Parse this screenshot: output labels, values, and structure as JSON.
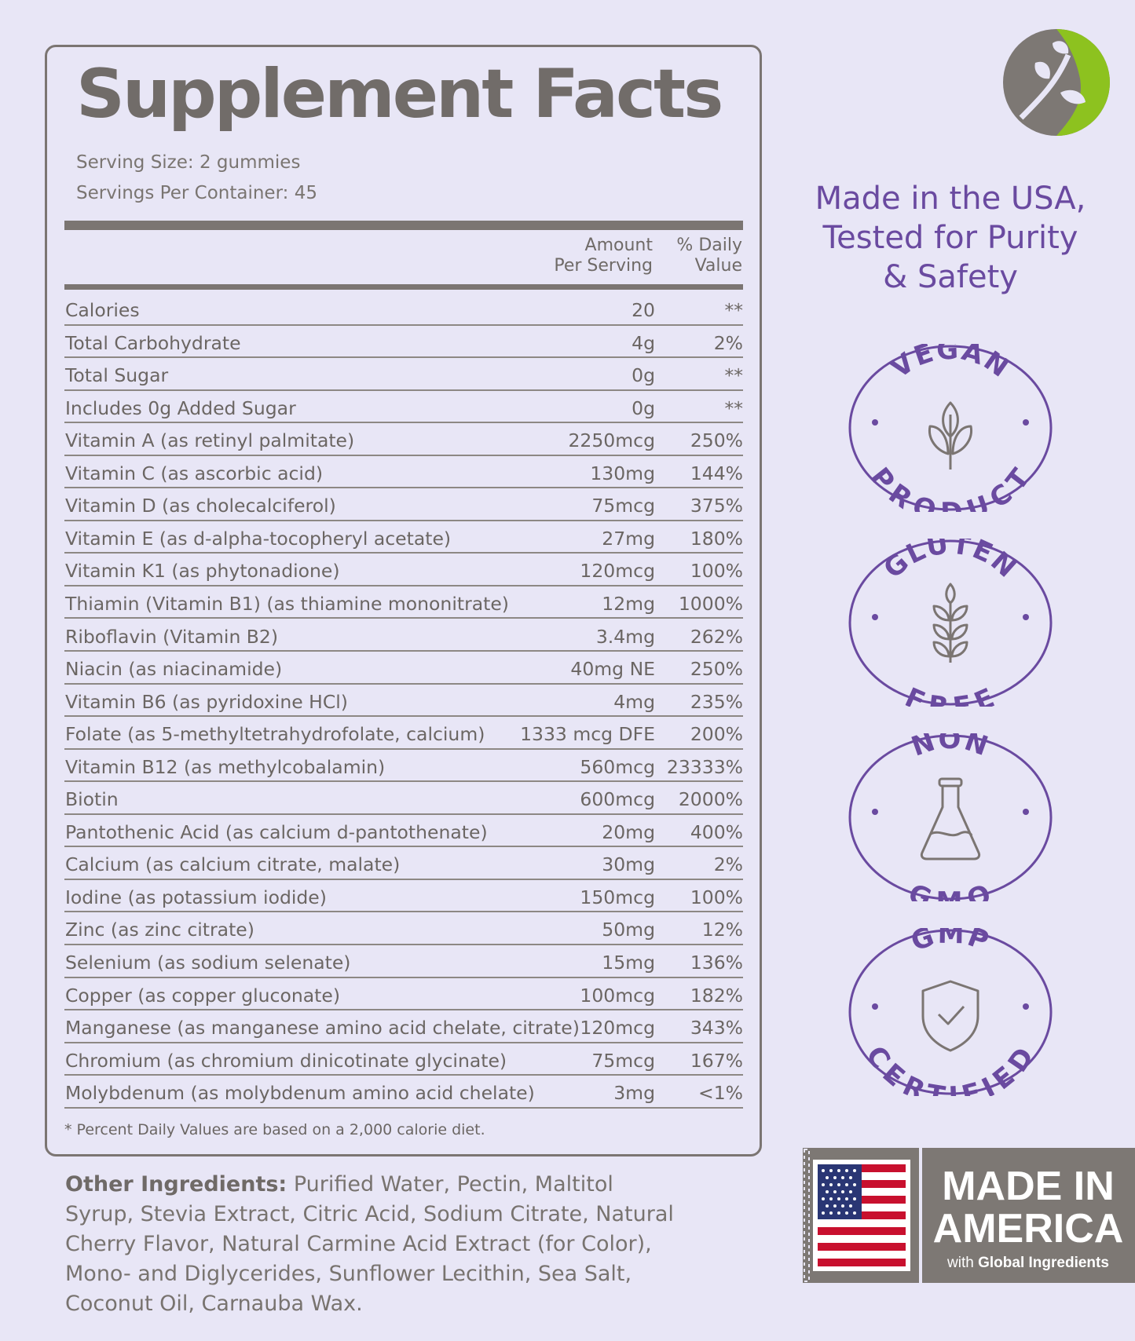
{
  "title": "Supplement Facts",
  "serving_size": "Serving Size: 2 gummies",
  "servings_per_container": "Servings Per Container: 45",
  "header": {
    "amount_line1": "Amount",
    "amount_line2": "Per Serving",
    "dv_line1": "% Daily",
    "dv_line2": "Value"
  },
  "rows": [
    {
      "name": "Calories",
      "amount": "20",
      "dv": "**"
    },
    {
      "name": "Total Carbohydrate",
      "amount": "4g",
      "dv": "2%"
    },
    {
      "name": "Total Sugar",
      "amount": "0g",
      "dv": "**"
    },
    {
      "name": "Includes 0g Added Sugar",
      "amount": "0g",
      "dv": "**"
    },
    {
      "name": "Vitamin A (as retinyl palmitate)",
      "amount": "2250mcg",
      "dv": "250%"
    },
    {
      "name": "Vitamin C (as ascorbic acid)",
      "amount": "130mg",
      "dv": "144%"
    },
    {
      "name": "Vitamin D (as cholecalciferol)",
      "amount": "75mcg",
      "dv": "375%"
    },
    {
      "name": "Vitamin E (as d-alpha-tocopheryl acetate)",
      "amount": "27mg",
      "dv": "180%"
    },
    {
      "name": "Vitamin K1 (as phytonadione)",
      "amount": "120mcg",
      "dv": "100%"
    },
    {
      "name": "Thiamin (Vitamin B1) (as thiamine mononitrate)",
      "amount": "12mg",
      "dv": "1000%"
    },
    {
      "name": "Riboflavin (Vitamin B2)",
      "amount": "3.4mg",
      "dv": "262%"
    },
    {
      "name": "Niacin (as niacinamide)",
      "amount": "40mg NE",
      "dv": "250%"
    },
    {
      "name": "Vitamin B6 (as pyridoxine HCl)",
      "amount": "4mg",
      "dv": "235%"
    },
    {
      "name": "Folate (as 5-methyltetrahydrofolate, calcium)",
      "amount": "1333 mcg DFE",
      "dv": "200%"
    },
    {
      "name": "Vitamin B12 (as methylcobalamin)",
      "amount": "560mcg",
      "dv": "23333%"
    },
    {
      "name": "Biotin",
      "amount": "600mcg",
      "dv": "2000%"
    },
    {
      "name": "Pantothenic Acid (as calcium d-pantothenate)",
      "amount": "20mg",
      "dv": "400%"
    },
    {
      "name": "Calcium (as calcium citrate, malate)",
      "amount": "30mg",
      "dv": "2%"
    },
    {
      "name": "Iodine (as potassium iodide)",
      "amount": "150mcg",
      "dv": "100%"
    },
    {
      "name": "Zinc (as zinc citrate)",
      "amount": "50mg",
      "dv": "12%"
    },
    {
      "name": "Selenium (as sodium selenate)",
      "amount": "15mg",
      "dv": "136%"
    },
    {
      "name": "Copper (as copper gluconate)",
      "amount": "100mcg",
      "dv": "182%"
    },
    {
      "name": "Manganese (as manganese amino acid chelate, citrate)",
      "amount": "120mcg",
      "dv": "343%"
    },
    {
      "name": "Chromium (as chromium dinicotinate glycinate)",
      "amount": "75mcg",
      "dv": "167%"
    },
    {
      "name": "Molybdenum (as molybdenum amino acid chelate)",
      "amount": "3mg",
      "dv": "<1%"
    }
  ],
  "footnote": "* Percent Daily Values are based on a 2,000 calorie diet.",
  "other_ingredients_label": "Other Ingredients:",
  "other_ingredients": " Purified Water, Pectin, Maltitol Syrup, Stevia Extract, Citric Acid, Sodium Citrate, Natural Cherry Flavor, Natural Carmine Acid Extract (for Color), Mono- and Diglycerides, Sunflower Lecithin, Sea Salt, Coconut Oil, Carnauba Wax.",
  "tagline": [
    "Made in the USA,",
    "Tested for Purity",
    "& Safety"
  ],
  "badges": [
    {
      "top": "VEGAN",
      "bottom": "PRODUCT",
      "icon": "leaf-plant-icon"
    },
    {
      "top": "GLUTEN",
      "bottom": "FREE",
      "icon": "wheat-icon"
    },
    {
      "top": "NON",
      "bottom": "GMO",
      "icon": "flask-icon"
    },
    {
      "top": "GMP",
      "bottom": "CERTIFIED",
      "icon": "shield-check-icon"
    }
  ],
  "seal": {
    "line1": "MADE IN",
    "line2": "AMERICA",
    "sub_prefix": "with ",
    "sub_bold": "Global Ingredients",
    "icon": "us-flag-icon"
  },
  "colors": {
    "background": "#e8e6f6",
    "text_gray": "#6f6a67",
    "accent_purple": "#6a4aa0",
    "logo_green": "#8dc21f",
    "seal_gray": "#7d7874"
  }
}
